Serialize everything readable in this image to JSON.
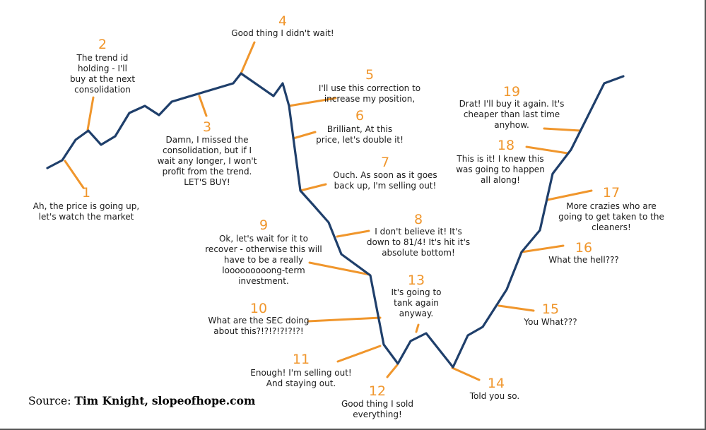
{
  "source": {
    "prefix": "Source:",
    "author": "Tim Knight,",
    "site": "slopeofhope.com"
  },
  "colors": {
    "price_line": "#1f3f6b",
    "accent": "#f0962c",
    "text": "#1a1a1a"
  },
  "annotations": [
    {
      "number": "1",
      "lines": [
        "Ah, the price is going up,",
        "let's watch the market"
      ]
    },
    {
      "number": "2",
      "lines": [
        "The trend id",
        "holding - I'll",
        "buy at the next",
        "consolidation"
      ]
    },
    {
      "number": "3",
      "lines": [
        "Damn, I missed the",
        "consolidation, but if I",
        "wait any longer, I won't",
        "profit from the trend.",
        "LET'S BUY!"
      ]
    },
    {
      "number": "4",
      "lines": [
        "Good thing I didn't wait!"
      ]
    },
    {
      "number": "5",
      "lines": [
        "I'll use this correction to",
        "increase my position,"
      ]
    },
    {
      "number": "6",
      "lines": [
        "Brilliant, At this",
        "price, let's double it!"
      ]
    },
    {
      "number": "7",
      "lines": [
        "Ouch. As soon as it goes",
        "back up, I'm selling out!"
      ]
    },
    {
      "number": "8",
      "lines": [
        "I don't believe it! It's",
        "down to 81/4! It's hit it's",
        "absolute bottom!"
      ]
    },
    {
      "number": "9",
      "lines": [
        "Ok, let's wait for it to",
        "recover - otherwise this will",
        "have to be a really",
        "looooooooong-term",
        "investment."
      ]
    },
    {
      "number": "10",
      "lines": [
        "What are the SEC doing",
        "about this?!?!?!?!?!?!"
      ]
    },
    {
      "number": "11",
      "lines": [
        "Enough! I'm selling out!",
        "And staying out."
      ]
    },
    {
      "number": "12",
      "lines": [
        "Good thing I sold",
        "everything!"
      ]
    },
    {
      "number": "13",
      "lines": [
        "It's going to",
        "tank again",
        "anyway."
      ]
    },
    {
      "number": "14",
      "lines": [
        "Told you so."
      ]
    },
    {
      "number": "15",
      "lines": [
        "You What???"
      ]
    },
    {
      "number": "16",
      "lines": [
        "What the hell???"
      ]
    },
    {
      "number": "17",
      "lines": [
        "More crazies who are",
        "going to get taken to the",
        "cleaners!"
      ]
    },
    {
      "number": "18",
      "lines": [
        "This is it! I knew this",
        "was going to happen",
        "all along!"
      ]
    },
    {
      "number": "19",
      "lines": [
        "Drat! I'll buy it again. It's",
        "cheaper than last time",
        "anyhow."
      ]
    }
  ]
}
